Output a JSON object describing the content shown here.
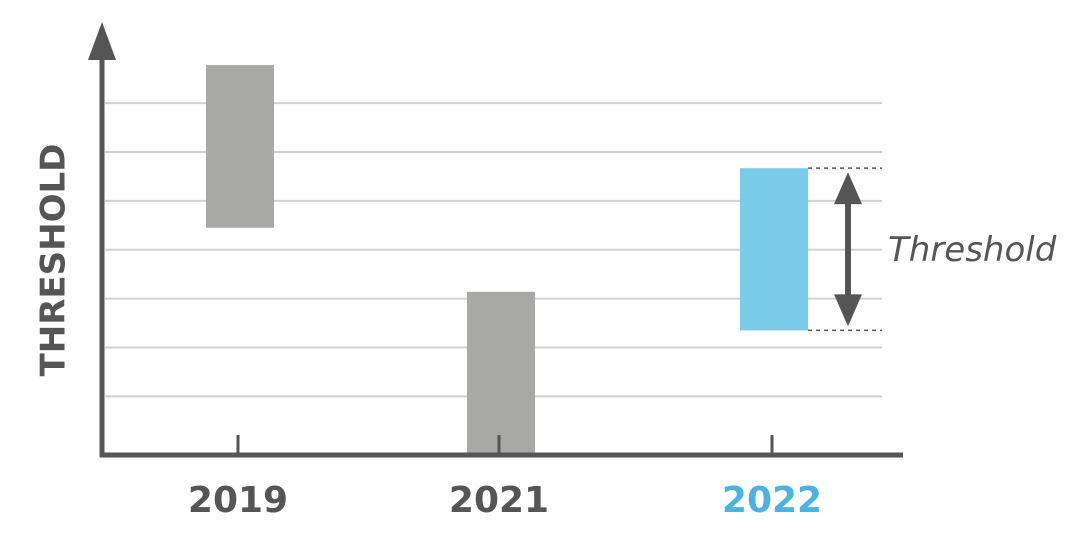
{
  "chart_data": {
    "type": "range_bar",
    "y_label": "THRESHOLD",
    "categories": [
      "2019",
      "2021",
      "2022"
    ],
    "low": [
      4.45,
      -0.18,
      2.35
    ],
    "high": [
      7.78,
      3.14,
      5.67
    ],
    "colors": [
      "#a8a8a6",
      "#a8a8a6",
      "#7acbea"
    ],
    "label_colors": [
      "#555555",
      "#555555",
      "#4bb3e0"
    ],
    "ylim": [
      -0.2,
      8.6
    ],
    "grid_lines": [
      1,
      2,
      3,
      4,
      5,
      6,
      7
    ],
    "grid": true,
    "annotation": {
      "text": "Threshold",
      "category_index": 2
    }
  }
}
